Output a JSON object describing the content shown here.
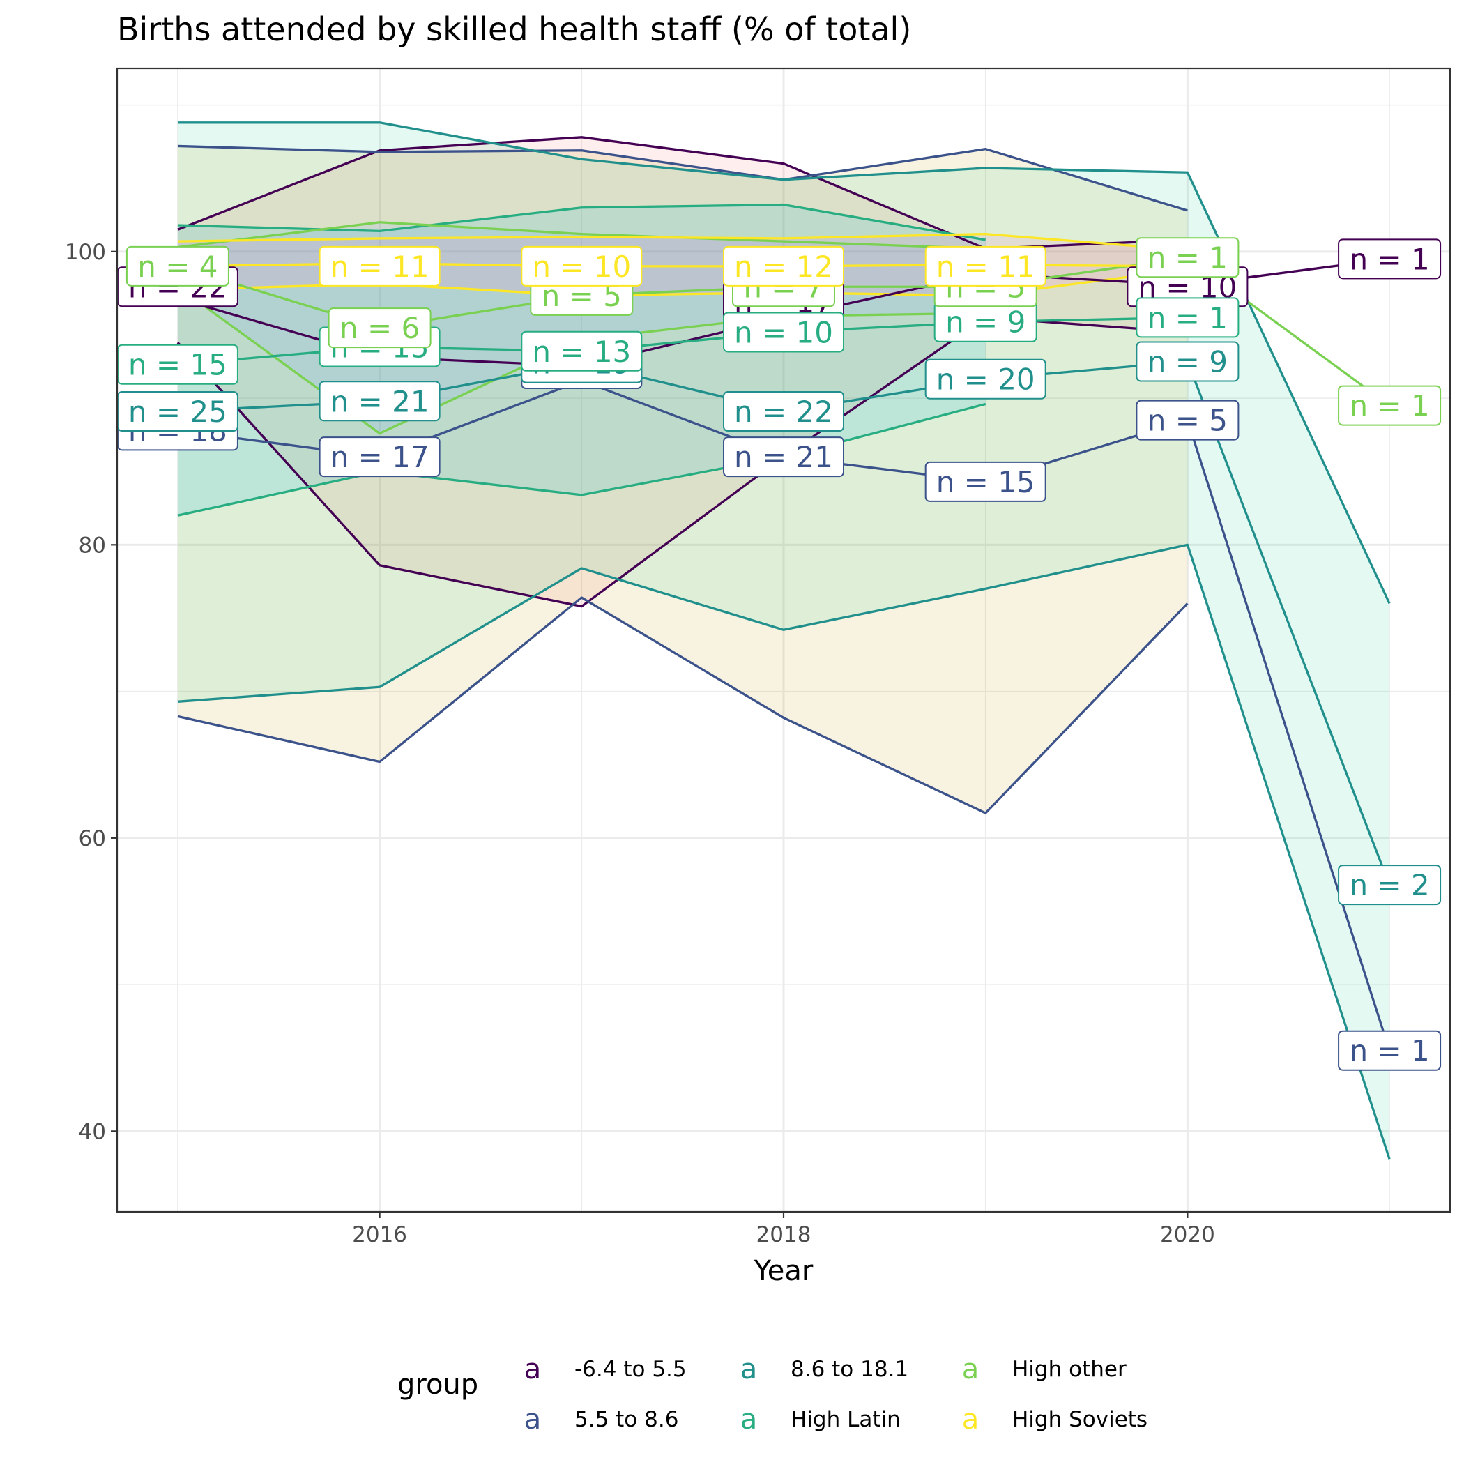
{
  "chart_data": {
    "type": "line",
    "title": "Births attended by skilled health staff (% of total)",
    "xlabel": "Year",
    "ylabel": "",
    "xlim": [
      2014.7,
      2021.3
    ],
    "ylim": [
      34.5,
      112.5
    ],
    "x_ticks": [
      2016,
      2018,
      2020
    ],
    "y_ticks": [
      40,
      60,
      80,
      100
    ],
    "grid": true,
    "legend": {
      "title": "group",
      "position": "bottom",
      "key_glyph": "a"
    },
    "series": [
      {
        "name": "-6.4 to 5.5",
        "color": "#440154",
        "x": [
          2015,
          2016,
          2017,
          2018,
          2019,
          2020,
          2021
        ],
        "mean": [
          96.8,
          92.8,
          92.2,
          95.5,
          98.5,
          97.7,
          99.5
        ],
        "upper": [
          101.5,
          106.9,
          107.8,
          106.0,
          100.2,
          100.8,
          null
        ],
        "lower": [
          93.8,
          78.6,
          75.8,
          86.0,
          95.5,
          94.5,
          null
        ],
        "n_labels": [
          {
            "x": 2015,
            "y": 97.6,
            "text": "n = 22"
          },
          {
            "x": 2018,
            "y": 96.6,
            "text": "n = 17"
          },
          {
            "x": 2020,
            "y": 97.6,
            "text": "n = 10"
          },
          {
            "x": 2021,
            "y": 99.5,
            "text": "n = 1"
          }
        ]
      },
      {
        "name": "5.5 to 8.6",
        "color": "#3b528b",
        "x": [
          2015,
          2016,
          2017,
          2018,
          2019,
          2020,
          2021
        ],
        "mean": [
          87.8,
          86.0,
          91.2,
          86.0,
          84.3,
          88.5,
          45.5
        ],
        "upper": [
          107.2,
          106.8,
          106.9,
          104.9,
          107.0,
          102.8,
          null
        ],
        "lower": [
          68.3,
          65.2,
          76.4,
          68.2,
          61.7,
          76.0,
          null
        ],
        "n_labels": [
          {
            "x": 2015,
            "y": 87.8,
            "text": "n = 18"
          },
          {
            "x": 2016,
            "y": 86.0,
            "text": "n = 17"
          },
          {
            "x": 2017,
            "y": 92.0,
            "text": "n = 20"
          },
          {
            "x": 2018,
            "y": 86.0,
            "text": "n = 21"
          },
          {
            "x": 2019,
            "y": 84.3,
            "text": "n = 15"
          },
          {
            "x": 2020,
            "y": 88.5,
            "text": "n = 5"
          },
          {
            "x": 2021,
            "y": 45.5,
            "text": "n = 1"
          }
        ]
      },
      {
        "name": "8.6 to 18.1",
        "color": "#21908c",
        "x": [
          2015,
          2016,
          2017,
          2018,
          2019,
          2020,
          2021
        ],
        "mean": [
          89.1,
          89.8,
          92.4,
          89.1,
          91.3,
          92.5,
          56.8
        ],
        "upper": [
          108.8,
          108.8,
          106.3,
          104.9,
          105.7,
          105.4,
          76.0
        ],
        "lower": [
          69.3,
          70.3,
          78.4,
          74.2,
          77.0,
          80.0,
          38.1
        ],
        "n_labels": [
          {
            "x": 2015,
            "y": 89.1,
            "text": "n = 25"
          },
          {
            "x": 2016,
            "y": 89.8,
            "text": "n = 21"
          },
          {
            "x": 2017,
            "y": 92.4,
            "text": "n = 19"
          },
          {
            "x": 2018,
            "y": 89.1,
            "text": "n = 22"
          },
          {
            "x": 2019,
            "y": 91.3,
            "text": "n = 20"
          },
          {
            "x": 2020,
            "y": 92.5,
            "text": "n = 9"
          },
          {
            "x": 2021,
            "y": 56.8,
            "text": "n = 2"
          }
        ]
      },
      {
        "name": "High Latin",
        "color": "#27ad81",
        "x": [
          2015,
          2016,
          2017,
          2018,
          2019,
          2020
        ],
        "mean": [
          92.3,
          93.5,
          93.2,
          94.5,
          95.2,
          95.5
        ],
        "upper": [
          101.8,
          101.4,
          103.0,
          103.2,
          100.8,
          null
        ],
        "lower": [
          82.0,
          85.0,
          83.4,
          86.0,
          89.6,
          null
        ],
        "n_labels": [
          {
            "x": 2015,
            "y": 92.3,
            "text": "n = 15"
          },
          {
            "x": 2016,
            "y": 93.5,
            "text": "n = 15"
          },
          {
            "x": 2017,
            "y": 93.2,
            "text": "n = 13"
          },
          {
            "x": 2018,
            "y": 94.5,
            "text": "n = 10"
          },
          {
            "x": 2019,
            "y": 95.2,
            "text": "n = 9"
          },
          {
            "x": 2020,
            "y": 95.5,
            "text": "n = 1"
          }
        ]
      },
      {
        "name": "High other",
        "color": "#7ad151",
        "x": [
          2015,
          2016,
          2017,
          2018,
          2019,
          2020,
          2021
        ],
        "mean": [
          99.0,
          94.8,
          97.0,
          97.6,
          97.6,
          99.6,
          89.5
        ],
        "upper": [
          100.3,
          102.0,
          101.2,
          100.7,
          100.2,
          null,
          null
        ],
        "lower": [
          97.6,
          87.6,
          94.0,
          95.6,
          95.8,
          null,
          null
        ],
        "n_labels": [
          {
            "x": 2015,
            "y": 99.0,
            "text": "n = 4"
          },
          {
            "x": 2016,
            "y": 94.8,
            "text": "n = 6"
          },
          {
            "x": 2017,
            "y": 97.0,
            "text": "n = 5"
          },
          {
            "x": 2018,
            "y": 97.6,
            "text": "n = 7"
          },
          {
            "x": 2019,
            "y": 97.6,
            "text": "n = 5"
          },
          {
            "x": 2020,
            "y": 99.6,
            "text": "n = 1"
          },
          {
            "x": 2021,
            "y": 89.5,
            "text": "n = 1"
          }
        ]
      },
      {
        "name": "High Soviets",
        "color": "#fde725",
        "x": [
          2015,
          2016,
          2017,
          2018,
          2019,
          2020
        ],
        "mean": [
          99.0,
          99.2,
          99.0,
          99.0,
          99.1,
          99.0
        ],
        "upper": [
          100.7,
          100.9,
          101.0,
          100.9,
          101.2,
          100.1
        ],
        "lower": [
          97.4,
          97.8,
          97.0,
          97.2,
          97.0,
          98.8
        ],
        "n_labels": [
          {
            "x": 2016,
            "y": 99.0,
            "text": "n = 11"
          },
          {
            "x": 2017,
            "y": 99.0,
            "text": "n = 10"
          },
          {
            "x": 2018,
            "y": 99.0,
            "text": "n = 12"
          },
          {
            "x": 2019,
            "y": 99.0,
            "text": "n = 11"
          }
        ]
      }
    ]
  }
}
